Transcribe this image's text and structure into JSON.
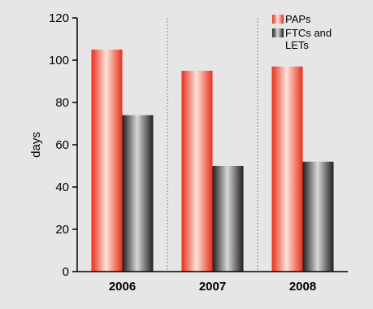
{
  "chart_data": {
    "type": "bar",
    "categories": [
      "2006",
      "2007",
      "2008"
    ],
    "series": [
      {
        "name": "PAPs",
        "values": [
          105,
          95,
          97
        ]
      },
      {
        "name": "FTCs and LETs",
        "values": [
          74,
          50,
          52
        ]
      }
    ],
    "ylabel": "days",
    "xlabel": "",
    "ylim": [
      0,
      120
    ],
    "yticks": [
      0,
      20,
      40,
      60,
      80,
      100,
      120
    ],
    "legend": {
      "position": "top-right",
      "entries": [
        {
          "lines": [
            "PAPs"
          ]
        },
        {
          "lines": [
            "FTCs and",
            "LETs"
          ]
        }
      ]
    },
    "grid": false,
    "separators": "dotted vertical lines between categories",
    "colors": {
      "PAPs_dark": "#e8301c",
      "PAPs_light": "#fde3d8",
      "FTCs_dark": "#1e1e1e",
      "FTCs_light": "#d8d8d8",
      "background": "#e6e6e6"
    }
  }
}
